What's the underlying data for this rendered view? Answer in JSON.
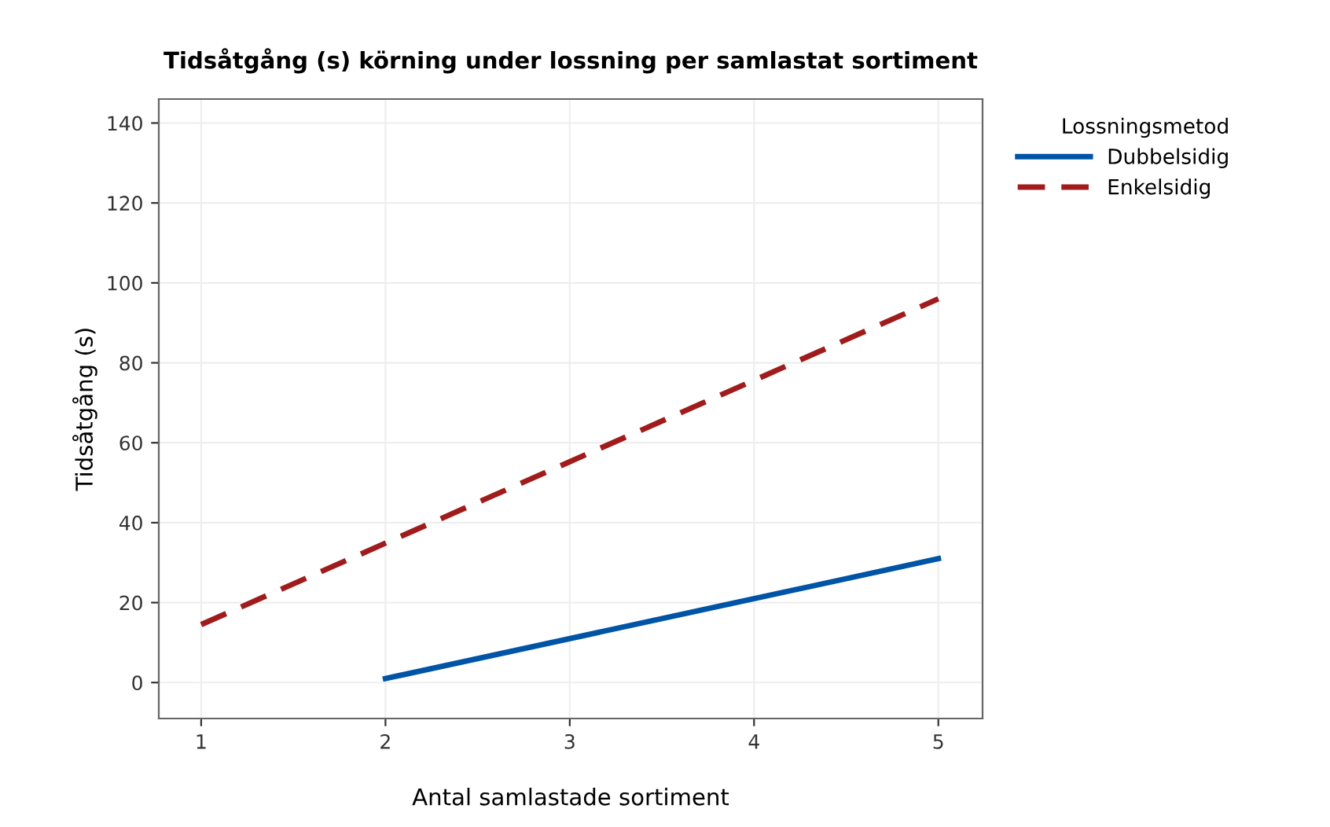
{
  "chart_data": {
    "type": "line",
    "title": "Tidsåtgång (s) körning under lossning per samlastat sortiment",
    "xlabel": "Antal samlastade sortiment",
    "ylabel": "Tidsåtgång (s)",
    "legend_title": "Lossningsmetod",
    "series": [
      {
        "name": "Dubbelsidig",
        "color": "#0054a6",
        "line_style": "solid",
        "x": [
          2,
          5
        ],
        "values": [
          1,
          31
        ]
      },
      {
        "name": "Enkelsidig",
        "color": "#a01c1c",
        "line_style": "dashed",
        "x": [
          1,
          5
        ],
        "values": [
          14.5,
          96
        ]
      }
    ],
    "xlim": [
      0.77,
      5.24
    ],
    "xticks": [
      1,
      2,
      3,
      4,
      5
    ],
    "ylim": [
      -9,
      146
    ],
    "yticks": [
      0,
      20,
      40,
      60,
      80,
      100,
      120,
      140
    ],
    "grid": true,
    "legend": "top right",
    "marker": "none"
  }
}
